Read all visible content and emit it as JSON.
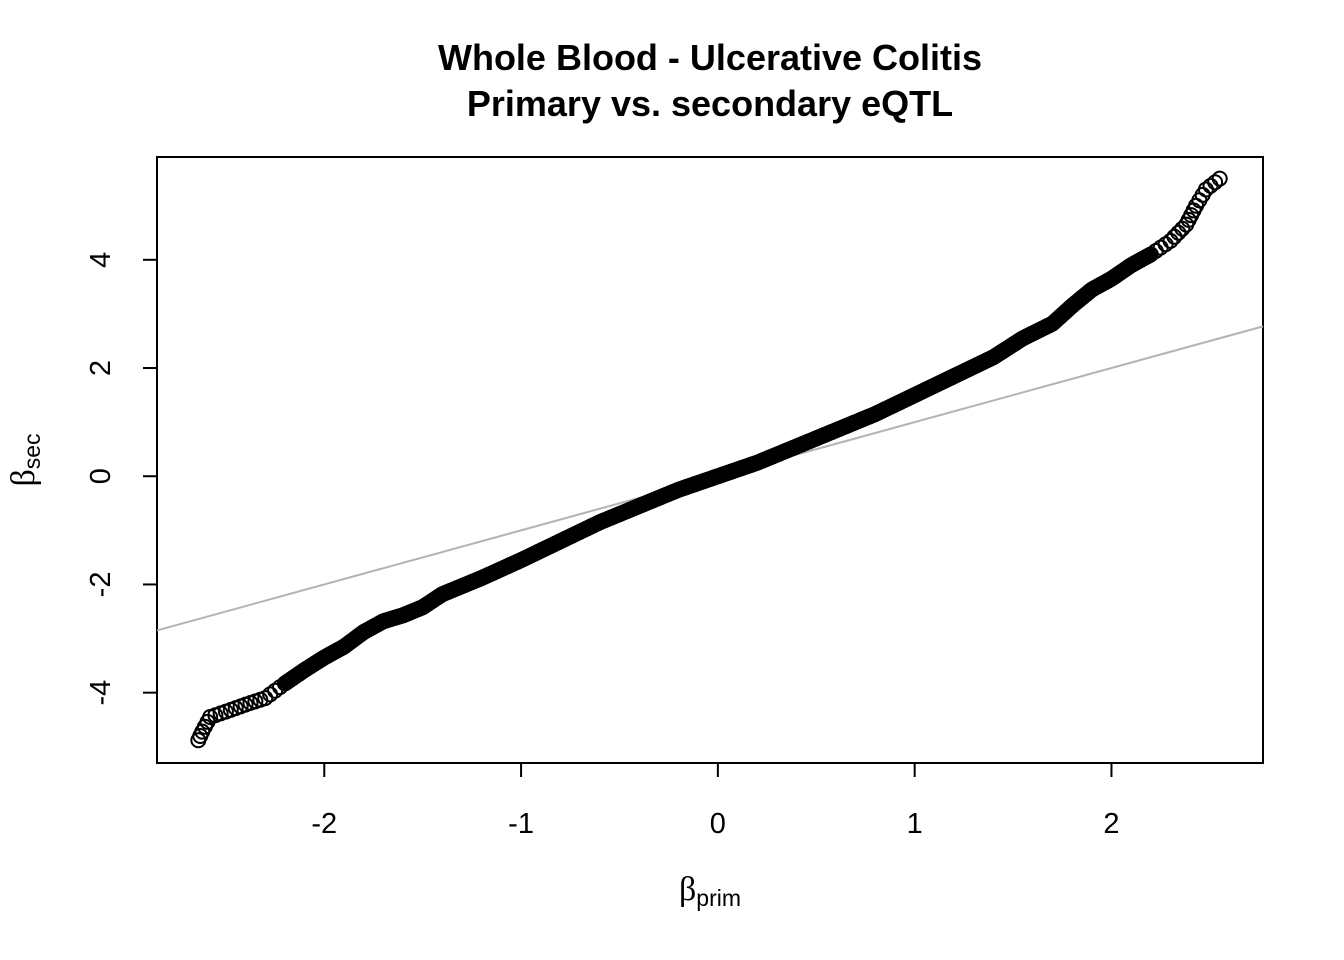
{
  "chart_data": {
    "type": "scatter",
    "title": "Whole Blood - Ulcerative Colitis",
    "subtitle": "Primary vs. secondary eQTL",
    "xlabel_symbol": "β",
    "xlabel_subscript": "prim",
    "ylabel_symbol": "β",
    "ylabel_subscript": "sec",
    "xlim": [
      -2.85,
      2.77
    ],
    "ylim": [
      -5.3,
      5.9
    ],
    "xticks": [
      -2,
      -1,
      0,
      1,
      2
    ],
    "yticks": [
      -4,
      -2,
      0,
      2,
      4
    ],
    "reference_line": {
      "slope": 1,
      "intercept": 0,
      "color": "#b3b3b3"
    },
    "marker": "open-circle",
    "point_color": "#000000",
    "curve_points": [
      [
        -2.64,
        -4.88
      ],
      [
        -2.62,
        -4.72
      ],
      [
        -2.58,
        -4.45
      ],
      [
        -2.5,
        -4.35
      ],
      [
        -2.4,
        -4.22
      ],
      [
        -2.3,
        -4.1
      ],
      [
        -2.2,
        -3.83
      ],
      [
        -2.1,
        -3.58
      ],
      [
        -2.0,
        -3.35
      ],
      [
        -1.9,
        -3.15
      ],
      [
        -1.8,
        -2.88
      ],
      [
        -1.7,
        -2.68
      ],
      [
        -1.6,
        -2.57
      ],
      [
        -1.5,
        -2.42
      ],
      [
        -1.4,
        -2.18
      ],
      [
        -1.2,
        -1.88
      ],
      [
        -1.0,
        -1.55
      ],
      [
        -0.8,
        -1.2
      ],
      [
        -0.6,
        -0.85
      ],
      [
        -0.4,
        -0.55
      ],
      [
        -0.2,
        -0.25
      ],
      [
        0.0,
        0.0
      ],
      [
        0.2,
        0.25
      ],
      [
        0.4,
        0.55
      ],
      [
        0.6,
        0.85
      ],
      [
        0.8,
        1.15
      ],
      [
        1.0,
        1.5
      ],
      [
        1.2,
        1.85
      ],
      [
        1.4,
        2.2
      ],
      [
        1.55,
        2.55
      ],
      [
        1.7,
        2.82
      ],
      [
        1.8,
        3.15
      ],
      [
        1.9,
        3.45
      ],
      [
        2.0,
        3.65
      ],
      [
        2.1,
        3.9
      ],
      [
        2.2,
        4.1
      ],
      [
        2.3,
        4.35
      ],
      [
        2.38,
        4.65
      ],
      [
        2.43,
        5.0
      ],
      [
        2.48,
        5.3
      ],
      [
        2.55,
        5.5
      ]
    ]
  }
}
